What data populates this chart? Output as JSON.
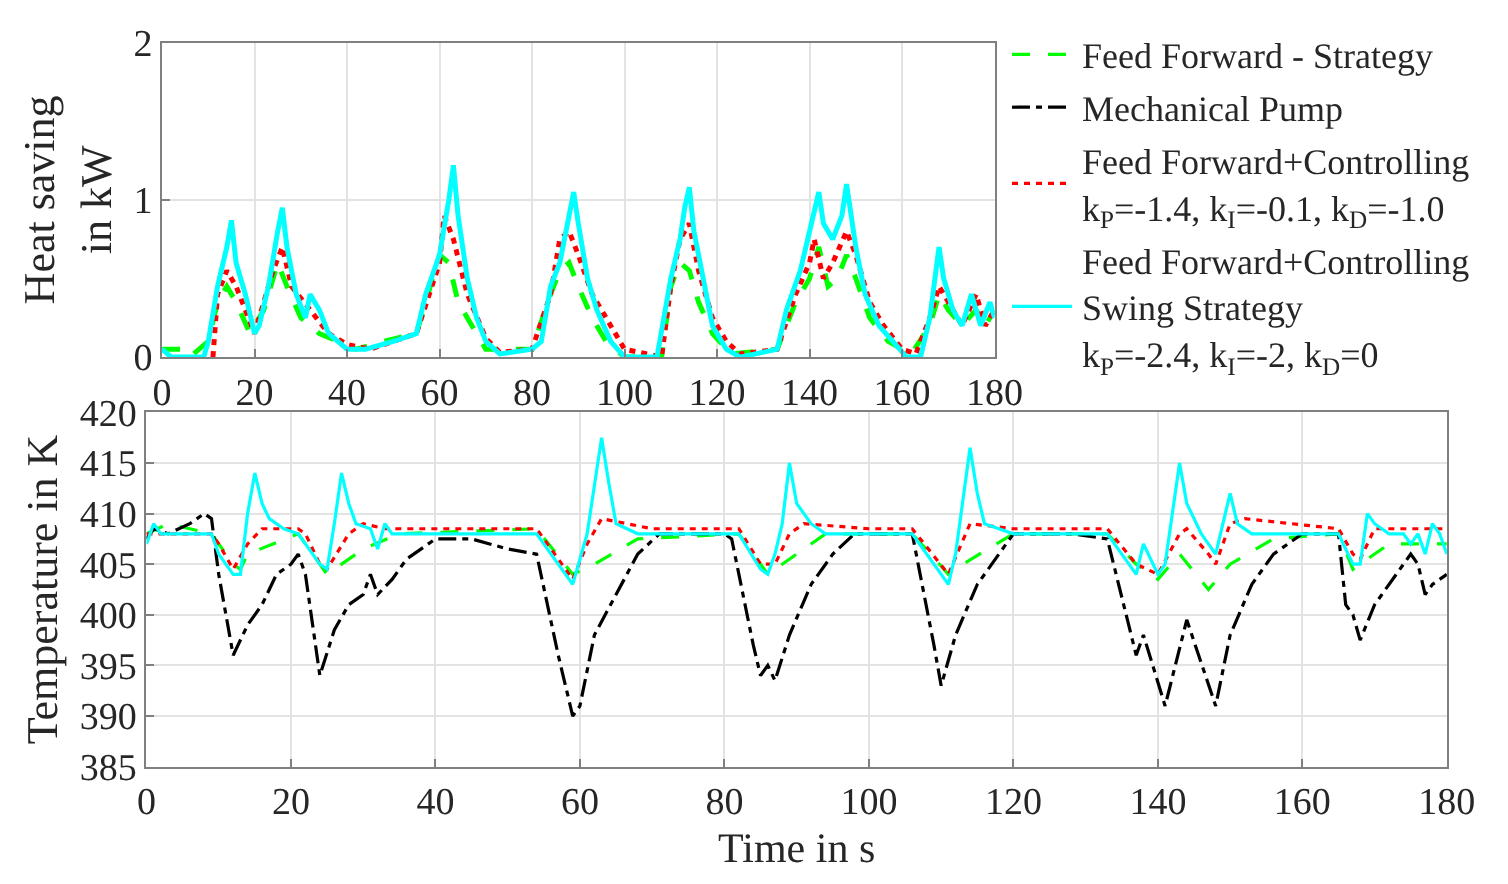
{
  "chart_data": [
    {
      "type": "line",
      "ylabel": "Heat saving\nin kW",
      "xlim": [
        0,
        180
      ],
      "xticks": [
        0,
        20,
        40,
        60,
        80,
        100,
        120,
        140,
        160,
        180
      ],
      "ylim": [
        0,
        2
      ],
      "yticks": [
        0,
        1,
        2
      ],
      "grid": true,
      "legend": false,
      "series": [
        {
          "color": "#00ff00",
          "line_style": "dashed",
          "x": [
            0,
            4,
            6,
            10,
            12,
            14,
            16,
            19,
            22,
            24,
            25,
            27,
            30,
            34,
            38,
            42,
            48,
            55,
            58,
            60,
            62,
            64,
            67,
            70,
            80,
            84,
            86,
            88,
            90,
            93,
            96,
            100,
            108,
            110,
            112,
            114,
            116,
            119,
            123,
            133,
            137,
            140,
            142,
            144,
            146,
            148,
            150,
            153,
            157,
            162,
            166,
            168,
            170,
            173,
            176,
            178,
            180
          ],
          "values": [
            0.05,
            0.05,
            0,
            0.1,
            0.35,
            0.45,
            0.35,
            0.15,
            0.3,
            0.5,
            0.6,
            0.45,
            0.25,
            0.15,
            0.1,
            0.05,
            0.1,
            0.15,
            0.45,
            0.65,
            0.6,
            0.35,
            0.2,
            0.05,
            0.05,
            0.4,
            0.55,
            0.6,
            0.45,
            0.25,
            0.1,
            0,
            0,
            0.45,
            0.6,
            0.55,
            0.35,
            0.15,
            0.02,
            0.05,
            0.35,
            0.5,
            0.7,
            0.45,
            0.5,
            0.65,
            0.5,
            0.25,
            0.1,
            0.02,
            0.2,
            0.4,
            0.3,
            0.2,
            0.3,
            0.2,
            0.3
          ]
        },
        {
          "color": "#ff0000",
          "line_style": "dotted",
          "x": [
            11,
            12,
            14,
            16,
            18,
            20,
            24,
            26,
            28,
            32,
            36,
            40,
            45,
            55,
            60,
            61,
            63,
            66,
            70,
            73,
            80,
            84,
            86,
            88,
            90,
            93,
            97,
            100,
            108,
            110,
            112,
            114,
            116,
            119,
            122,
            125,
            133,
            137,
            140,
            141,
            143,
            145,
            148,
            150,
            153,
            156,
            160,
            163,
            166,
            168,
            170,
            173,
            176,
            178,
            180
          ],
          "values": [
            0,
            0.4,
            0.55,
            0.45,
            0.3,
            0.15,
            0.55,
            0.7,
            0.45,
            0.3,
            0.15,
            0.08,
            0.05,
            0.15,
            0.6,
            0.9,
            0.75,
            0.4,
            0.12,
            0.03,
            0.05,
            0.4,
            0.75,
            0.8,
            0.65,
            0.4,
            0.2,
            0.05,
            0,
            0.45,
            0.75,
            0.85,
            0.55,
            0.25,
            0.1,
            0.02,
            0.05,
            0.4,
            0.6,
            0.75,
            0.5,
            0.6,
            0.8,
            0.65,
            0.35,
            0.2,
            0.05,
            0.02,
            0.25,
            0.45,
            0.35,
            0.2,
            0.4,
            0.2,
            0.3
          ]
        },
        {
          "color": "#00ffff",
          "line_style": "solid",
          "x": [
            0,
            2,
            9,
            10,
            12,
            14,
            15,
            16,
            18,
            20,
            21,
            23,
            25,
            26,
            27,
            29,
            31,
            32,
            34,
            36,
            40,
            44,
            50,
            55,
            57,
            60,
            62,
            63,
            64,
            66,
            68,
            70,
            73,
            80,
            82,
            84,
            86,
            88,
            89,
            90,
            92,
            94,
            97,
            100,
            107,
            110,
            112,
            113,
            114,
            115,
            117,
            119,
            122,
            125,
            133,
            135,
            138,
            140,
            142,
            143,
            145,
            147,
            148,
            150,
            152,
            155,
            158,
            161,
            164,
            166,
            168,
            169,
            171,
            173,
            175,
            177,
            179,
            180
          ],
          "values": [
            0.05,
            0,
            0,
            0.1,
            0.45,
            0.7,
            0.87,
            0.6,
            0.4,
            0.15,
            0.2,
            0.45,
            0.8,
            0.95,
            0.7,
            0.4,
            0.25,
            0.4,
            0.3,
            0.15,
            0.05,
            0.05,
            0.1,
            0.15,
            0.4,
            0.65,
            1.0,
            1.22,
            0.9,
            0.5,
            0.25,
            0.1,
            0.02,
            0.05,
            0.1,
            0.45,
            0.6,
            0.9,
            1.05,
            0.85,
            0.5,
            0.3,
            0.1,
            0,
            0,
            0.5,
            0.75,
            0.95,
            1.08,
            0.8,
            0.5,
            0.2,
            0.05,
            0,
            0.05,
            0.3,
            0.55,
            0.8,
            1.05,
            0.85,
            0.75,
            0.9,
            1.1,
            0.7,
            0.4,
            0.2,
            0.1,
            0,
            0,
            0.25,
            0.7,
            0.5,
            0.3,
            0.2,
            0.4,
            0.2,
            0.35,
            0.25
          ]
        }
      ]
    },
    {
      "type": "line",
      "xlabel": "Time in s",
      "ylabel": "Temperature in K",
      "xlim": [
        0,
        180
      ],
      "xticks": [
        0,
        20,
        40,
        60,
        80,
        100,
        120,
        140,
        160,
        180
      ],
      "ylim": [
        385,
        420
      ],
      "yticks": [
        385,
        390,
        395,
        400,
        405,
        410,
        415,
        420
      ],
      "grid": true,
      "legend": "top right",
      "series": [
        {
          "name": "Feed Forward - Strategy",
          "color": "#00ff00",
          "line_style": "dashed",
          "x": [
            0,
            3,
            9,
            12,
            13,
            14,
            21,
            25,
            30,
            35,
            54,
            59,
            62,
            68,
            82,
            86,
            88,
            94,
            106,
            111,
            113,
            120,
            133,
            137,
            140,
            143,
            147,
            150,
            156,
            165,
            167,
            172,
            180
          ],
          "values": [
            408,
            409,
            408,
            405,
            404.5,
            406,
            408,
            404,
            406.5,
            408,
            408.5,
            404,
            405,
            407.5,
            408,
            404,
            405,
            408,
            408,
            404,
            405,
            408,
            408,
            405,
            403.5,
            406,
            402.5,
            405,
            407.5,
            408,
            404.5,
            407,
            407
          ]
        },
        {
          "name": "Mechanical Pump",
          "color": "#000000",
          "line_style": "dashdot",
          "x": [
            0,
            1,
            3,
            6,
            8,
            9,
            10,
            12,
            14,
            16,
            18,
            20,
            21,
            22,
            24,
            26,
            28,
            30,
            31,
            32,
            34,
            36,
            40,
            45,
            50,
            54,
            57,
            59,
            60,
            62,
            65,
            68,
            71,
            80,
            81,
            84,
            85,
            86,
            87,
            89,
            92,
            95,
            98,
            103,
            106,
            109,
            110,
            112,
            115,
            118,
            120,
            128,
            133,
            137,
            138,
            141,
            144,
            148,
            150,
            153,
            156,
            160,
            165,
            166,
            167,
            168,
            170,
            173,
            175,
            176,
            177,
            178,
            180
          ],
          "values": [
            407.5,
            408.5,
            408,
            409,
            410,
            409.5,
            404,
            396,
            399,
            401,
            404,
            405,
            406,
            404,
            394,
            398.5,
            401,
            402,
            404,
            402,
            403.5,
            405.5,
            407.5,
            407.5,
            406.5,
            406,
            396,
            390,
            391,
            398,
            402,
            406,
            408,
            408,
            407.5,
            397,
            394,
            395,
            393.5,
            398,
            403,
            406,
            408,
            408,
            408,
            397,
            393,
            398,
            403,
            406,
            408,
            408,
            407.5,
            396,
            398,
            391,
            399.5,
            391,
            398,
            403,
            406,
            408,
            408,
            401,
            400,
            397.5,
            401,
            404,
            406,
            405,
            402,
            403,
            404
          ]
        },
        {
          "name": "Feed Forward+Controlling\nk$_{P}$=-1.4, k$_{I}$=-0.1, k$_{D}$=-1.0",
          "color": "#ff0000",
          "line_style": "dotted",
          "x": [
            0,
            9,
            10,
            12,
            14,
            16,
            21,
            22,
            24,
            25,
            28,
            30,
            33,
            54,
            59,
            61,
            63,
            70,
            82,
            85,
            87,
            89,
            91,
            100,
            106,
            111,
            114,
            120,
            133,
            137,
            140,
            143,
            144,
            147,
            148,
            150,
            152,
            165,
            167,
            168,
            170,
            175,
            180
          ],
          "values": [
            408,
            408,
            407,
            404.5,
            407,
            408.5,
            408.5,
            408,
            405,
            404.5,
            408,
            409,
            408.5,
            408.5,
            403.5,
            407,
            409.5,
            408.5,
            408.5,
            405,
            405,
            408,
            409,
            408.5,
            408.5,
            404,
            409,
            408.5,
            408.5,
            405,
            404,
            408,
            408.5,
            406,
            405,
            409,
            409.5,
            408.5,
            406,
            405.5,
            408.5,
            408.5,
            408.5
          ]
        },
        {
          "name": "Feed Forward+Controlling\nSwing Strategy\nk$_{P}$=-2.4, k$_{I}$=-2, k$_{D}$=0",
          "color": "#00ffff",
          "line_style": "solid",
          "x": [
            0,
            1,
            2,
            9,
            10,
            12,
            13,
            14,
            15,
            16,
            17,
            19,
            21,
            24,
            25,
            26,
            27,
            28,
            29,
            31,
            32,
            33,
            34,
            35,
            54,
            59,
            61,
            63,
            64,
            65,
            68,
            82,
            85,
            86,
            87,
            88,
            89,
            90,
            92,
            94,
            106,
            111,
            112,
            114,
            115,
            116,
            120,
            133,
            137,
            138,
            140,
            141,
            143,
            144,
            146,
            148,
            150,
            151,
            153,
            165,
            167,
            168,
            169,
            170,
            172,
            174,
            175,
            176,
            177,
            178,
            179,
            180
          ],
          "values": [
            407,
            409,
            408,
            408,
            406,
            404,
            404,
            410,
            414,
            411,
            409.5,
            408.5,
            408,
            405,
            404.5,
            409,
            414,
            411,
            409,
            408.5,
            406.5,
            409,
            408,
            408,
            408,
            403,
            408,
            417.5,
            413,
            409,
            408,
            408,
            404.5,
            404,
            406,
            409,
            415,
            411,
            409,
            408,
            408,
            403,
            406,
            416.5,
            412,
            409,
            408,
            408,
            404,
            407,
            404,
            405,
            415,
            411,
            408,
            406,
            412,
            409,
            408,
            408,
            405,
            405,
            410,
            409,
            408,
            408,
            407,
            408,
            406,
            409,
            408,
            406
          ]
        }
      ]
    }
  ]
}
